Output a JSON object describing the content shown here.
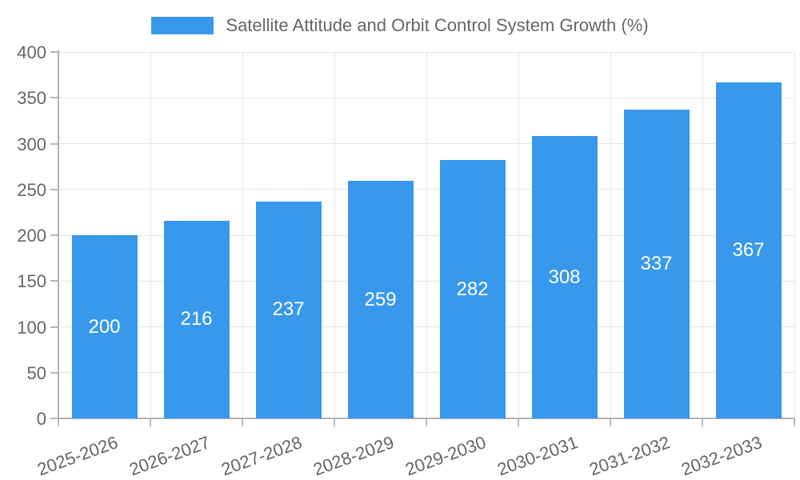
{
  "legend": {
    "label": "Satellite Attitude and Orbit Control System Growth (%)",
    "swatch_color": "#3899ec"
  },
  "chart_data": {
    "type": "bar",
    "title": "Satellite Attitude and Orbit Control System Growth (%)",
    "categories": [
      "2025-2026",
      "2026-2027",
      "2027-2028",
      "2028-2029",
      "2029-2030",
      "2030-2031",
      "2031-2032",
      "2032-2033"
    ],
    "values": [
      200,
      216,
      237,
      259,
      282,
      308,
      337,
      367
    ],
    "value_labels": [
      "200",
      "216",
      "237",
      "259",
      "282",
      "308",
      "337",
      "367"
    ],
    "xlabel": "",
    "ylabel": "",
    "ylim": [
      0,
      400
    ],
    "yticks": [
      0,
      50,
      100,
      150,
      200,
      250,
      300,
      350,
      400
    ],
    "grid": true,
    "legend_position": "top",
    "bar_color": "#3899ec",
    "value_label_color": "#ffffff",
    "axis_label_color": "#666666",
    "grid_color": "#e6e6e6",
    "axis_line_color": "#b0b0b0"
  }
}
